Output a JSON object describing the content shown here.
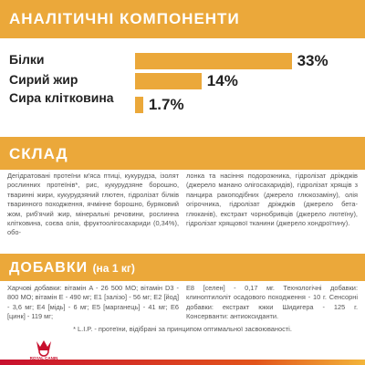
{
  "analysis": {
    "title": "АНАЛІТИЧНІ КОМПОНЕНТИ",
    "items": [
      {
        "name": "Білки",
        "value": 33,
        "value_label": "33%"
      },
      {
        "name": "Сирий жир",
        "value": 14,
        "value_label": "14%"
      },
      {
        "name": "Сира клітковина",
        "value": 1.7,
        "value_label": "1.7%"
      }
    ]
  },
  "composition": {
    "title": "СКЛАД",
    "columns": [
      "Дегідратовані протеїни м'яса птиці, кукурудза, ізолят рослинних протеїнів*, рис, кукурудзяне борошно, тваринні жири, кукурудзяний глютен, гідролізат білків тваринного походження, ячмінне борошно, буряковий жом, риб'ячий жир, мінеральні речовини, рослинна клітковина, соєва олія, фруктоолігосахариди (0,34%), обо-",
      "лонка та насіння подорожника, гідролізат дріжджів (джерело манано олігосахаридів), гідролізат хрящів з панцира ракоподібних (джерело глюкозаміну), олія огірочника, гідролізат дріжджів (джерело бета-глюканів), екстракт чорнобривців (джерело лютеїну), гідролізат хрящової тканини (джерело хондроїтину)."
    ]
  },
  "additives": {
    "title": "ДОБАВКИ",
    "subtitle": "(на 1 кг)",
    "columns": [
      "Харчові добавки: вітамін A - 26 500 МО; вітамін D3 - 800 МО; вітамін E - 490 мг; E1 [залізо] - 56 мг; E2 [йод] - 3,6 мг; E4 [мідь] - 6 мг; E5 [марганець] - 41 мг; E6 [цинк] - 119 мг;",
      "E8 [селен] - 0,17 мг. Технологічні добавки: клиноптилоліт осадового походження - 10 г. Сенсорні добавки: екстракт юкки Шидигера - 125 г. Консерванти: антиоксиданти."
    ]
  },
  "footnote": "* L.I.P. - протеїни, відібрані за принципом оптимальної засвоюваності.",
  "logo": "ROYAL CANIN"
}
